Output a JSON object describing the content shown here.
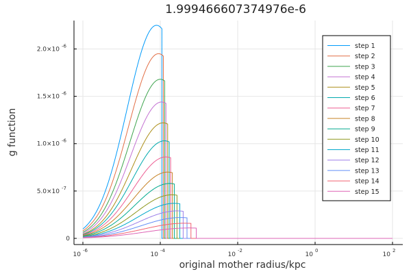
{
  "chart_data": {
    "type": "line",
    "title": "1.999466607374976e-6",
    "xlabel": "original mother radius/kpc",
    "ylabel": "g function",
    "x_scale": "log",
    "xlim": [
      1e-06,
      100
    ],
    "ylim": [
      0,
      2.3e-06
    ],
    "grid": true,
    "legend_position": "top-right",
    "x_ticks": [
      {
        "base": "10",
        "exp": "-6",
        "value": 1e-06
      },
      {
        "base": "10",
        "exp": "-4",
        "value": 0.0001
      },
      {
        "base": "10",
        "exp": "-2",
        "value": 0.01
      },
      {
        "base": "10",
        "exp": "0",
        "value": 1
      },
      {
        "base": "10",
        "exp": "2",
        "value": 100
      }
    ],
    "y_ticks": [
      {
        "mant": "0",
        "exp": "",
        "value": 0
      },
      {
        "mant": "5.0×10",
        "exp": "-7",
        "value": 5e-07
      },
      {
        "mant": "1.0×10",
        "exp": "-6",
        "value": 1e-06
      },
      {
        "mant": "1.5×10",
        "exp": "-6",
        "value": 1.5e-06
      },
      {
        "mant": "2.0×10",
        "exp": "-6",
        "value": 2e-06
      }
    ],
    "series": [
      {
        "name": "step 1",
        "color": "#009AFA",
        "peak_x": 8e-05,
        "peak_y": 2.25e-06,
        "start_y": 1e-07,
        "cutoff_x": 0.00011
      },
      {
        "name": "step 2",
        "color": "#E26F46",
        "peak_x": 9e-05,
        "peak_y": 1.95e-06,
        "start_y": 8e-08,
        "cutoff_x": 0.00012
      },
      {
        "name": "step 3",
        "color": "#3EA44E",
        "peak_x": 0.0001,
        "peak_y": 1.68e-06,
        "start_y": 6.5e-08,
        "cutoff_x": 0.00013
      },
      {
        "name": "step 4",
        "color": "#C371D2",
        "peak_x": 0.000108,
        "peak_y": 1.44e-06,
        "start_y": 5.5e-08,
        "cutoff_x": 0.00014
      },
      {
        "name": "step 5",
        "color": "#AC8E18",
        "peak_x": 0.000118,
        "peak_y": 1.22e-06,
        "start_y": 4.5e-08,
        "cutoff_x": 0.000155
      },
      {
        "name": "step 6",
        "color": "#00A9AD",
        "peak_x": 0.000128,
        "peak_y": 1.03e-06,
        "start_y": 4e-08,
        "cutoff_x": 0.00017
      },
      {
        "name": "step 7",
        "color": "#ED5D92",
        "peak_x": 0.00014,
        "peak_y": 8.6e-07,
        "start_y": 3.5e-08,
        "cutoff_x": 0.000185
      },
      {
        "name": "step 8",
        "color": "#C68225",
        "peak_x": 0.000155,
        "peak_y": 7e-07,
        "start_y": 3e-08,
        "cutoff_x": 0.000205
      },
      {
        "name": "step 9",
        "color": "#00A98D",
        "peak_x": 0.000175,
        "peak_y": 5.8e-07,
        "start_y": 2.5e-08,
        "cutoff_x": 0.00023
      },
      {
        "name": "step 10",
        "color": "#8E971D",
        "peak_x": 0.0002,
        "peak_y": 4.6e-07,
        "start_y": 2e-08,
        "cutoff_x": 0.00027
      },
      {
        "name": "step 11",
        "color": "#00A8CB",
        "peak_x": 0.00023,
        "peak_y": 3.7e-07,
        "start_y": 1.6e-08,
        "cutoff_x": 0.00032
      },
      {
        "name": "step 12",
        "color": "#9B7FE9",
        "peak_x": 0.00027,
        "peak_y": 2.9e-07,
        "start_y": 1.3e-08,
        "cutoff_x": 0.00039
      },
      {
        "name": "step 13",
        "color": "#618DF6",
        "peak_x": 0.00033,
        "peak_y": 2.2e-07,
        "start_y": 1e-08,
        "cutoff_x": 0.00049
      },
      {
        "name": "step 14",
        "color": "#F16170",
        "peak_x": 0.00042,
        "peak_y": 1.6e-07,
        "start_y": 8e-09,
        "cutoff_x": 0.00062
      },
      {
        "name": "step 15",
        "color": "#DD64B5",
        "peak_x": 0.00055,
        "peak_y": 1.1e-07,
        "start_y": 6e-09,
        "cutoff_x": 0.00085
      }
    ]
  }
}
